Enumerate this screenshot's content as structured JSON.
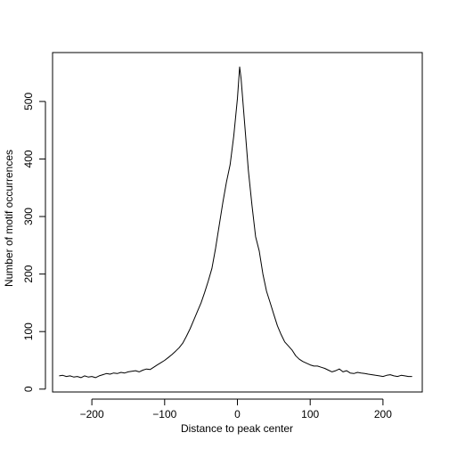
{
  "chart_data": {
    "type": "line",
    "title": "",
    "xlabel": "Distance to peak center",
    "ylabel": "Number of motif occurrences",
    "xlim": [
      -254,
      254
    ],
    "ylim": [
      -5,
      585
    ],
    "xticks": [
      -200,
      -100,
      0,
      100,
      200
    ],
    "yticks": [
      0,
      100,
      200,
      300,
      400,
      500
    ],
    "xtick_labels": [
      "−200",
      "−100",
      "0",
      "100",
      "200"
    ],
    "ytick_labels": [
      "0",
      "100",
      "200",
      "300",
      "400",
      "500"
    ],
    "grid": false,
    "line_color": "#000000",
    "series": [
      {
        "x": [
          -245,
          -240,
          -235,
          -230,
          -225,
          -220,
          -215,
          -210,
          -205,
          -200,
          -195,
          -190,
          -185,
          -180,
          -175,
          -170,
          -165,
          -160,
          -155,
          -150,
          -145,
          -140,
          -135,
          -130,
          -125,
          -120,
          -115,
          -110,
          -105,
          -100,
          -95,
          -90,
          -85,
          -80,
          -75,
          -70,
          -65,
          -60,
          -55,
          -50,
          -45,
          -40,
          -35,
          -30,
          -25,
          -20,
          -15,
          -10,
          -5,
          0,
          3,
          5,
          10,
          15,
          20,
          25,
          30,
          35,
          40,
          45,
          50,
          55,
          60,
          65,
          70,
          75,
          80,
          85,
          90,
          95,
          100,
          105,
          110,
          115,
          120,
          125,
          130,
          135,
          140,
          145,
          150,
          155,
          160,
          165,
          170,
          175,
          180,
          185,
          190,
          195,
          200,
          205,
          210,
          215,
          220,
          225,
          230,
          235,
          240
        ],
        "y": [
          23,
          24,
          22,
          23,
          21,
          22,
          20,
          23,
          21,
          22,
          20,
          23,
          25,
          27,
          26,
          28,
          27,
          29,
          28,
          30,
          31,
          32,
          30,
          33,
          35,
          34,
          38,
          42,
          46,
          50,
          55,
          60,
          66,
          72,
          80,
          92,
          105,
          120,
          135,
          150,
          168,
          188,
          210,
          245,
          285,
          325,
          360,
          390,
          440,
          505,
          560,
          540,
          460,
          380,
          320,
          265,
          240,
          200,
          170,
          150,
          130,
          110,
          95,
          82,
          75,
          68,
          58,
          52,
          48,
          45,
          42,
          40,
          40,
          38,
          36,
          33,
          30,
          32,
          35,
          30,
          32,
          28,
          27,
          29,
          28,
          27,
          26,
          25,
          24,
          23,
          22,
          24,
          25,
          23,
          22,
          24,
          23,
          22,
          22
        ]
      }
    ]
  }
}
